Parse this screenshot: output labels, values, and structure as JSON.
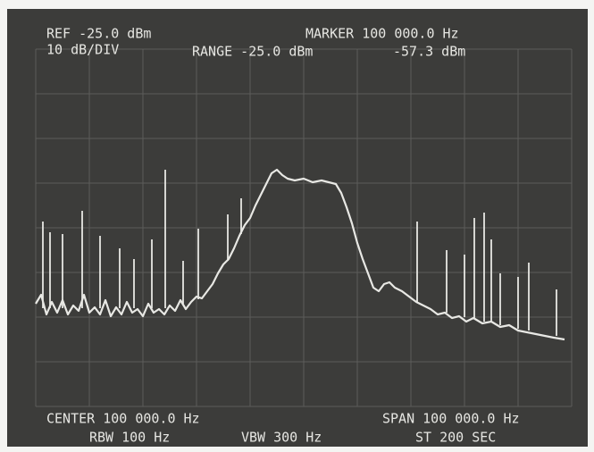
{
  "screen": {
    "header": {
      "ref": "REF -25.0 dBm",
      "scale": "10 dB/DIV",
      "range": "RANGE -25.0 dBm",
      "marker": "MARKER 100 000.0 Hz",
      "marker_level": "-57.3 dBm"
    },
    "footer": {
      "center": "CENTER 100 000.0 Hz",
      "rbw": "RBW 100 Hz",
      "vbw": "VBW 300 Hz",
      "span": "SPAN 100 000.0 Hz",
      "sweep": "ST 200 SEC"
    }
  }
}
